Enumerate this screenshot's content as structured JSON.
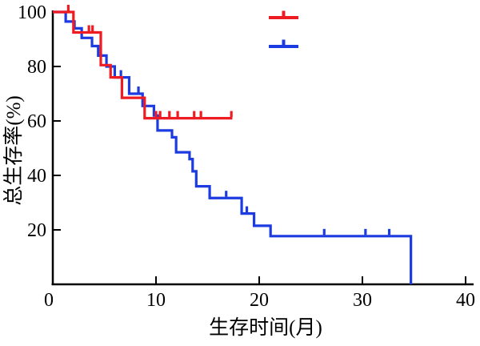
{
  "chart_data": {
    "type": "line",
    "subtype": "kaplan-meier-survival-step",
    "title": "",
    "xlabel": "生存时间(月)",
    "ylabel": "总生存率(%)",
    "xlim": [
      0,
      40
    ],
    "ylim": [
      0,
      100
    ],
    "x_ticks": [
      0,
      10,
      20,
      30,
      40
    ],
    "y_ticks": [
      20,
      40,
      60,
      80,
      100
    ],
    "grid": false,
    "axis_color": "#000000",
    "background": "#ffffff",
    "legend": {
      "position": "top-right-inside",
      "entries": [
        {
          "name": "red-group",
          "color": "#ee1b23",
          "label": ""
        },
        {
          "name": "blue-group",
          "color": "#1c3be0",
          "label": ""
        }
      ]
    },
    "series": [
      {
        "name": "red-group",
        "color": "#ee1b23",
        "steps": [
          [
            0,
            100
          ],
          [
            2.0,
            92.5
          ],
          [
            4.65,
            80.5
          ],
          [
            5.6,
            76
          ],
          [
            6.7,
            68.5
          ],
          [
            8.9,
            61
          ]
        ],
        "end_time": 17.4,
        "drops_to_zero": false,
        "censor_marks": [
          [
            1.5,
            100
          ],
          [
            3.5,
            92.5
          ],
          [
            3.85,
            92.5
          ],
          [
            10.0,
            61
          ],
          [
            10.4,
            61
          ],
          [
            11.3,
            61
          ],
          [
            12.1,
            61
          ],
          [
            13.7,
            61
          ],
          [
            14.35,
            61
          ],
          [
            17.3,
            61
          ]
        ]
      },
      {
        "name": "blue-group",
        "color": "#1c3be0",
        "steps": [
          [
            0,
            100
          ],
          [
            1.25,
            96.5
          ],
          [
            2.1,
            94
          ],
          [
            2.8,
            90.5
          ],
          [
            3.8,
            87.5
          ],
          [
            4.4,
            84
          ],
          [
            5.2,
            80
          ],
          [
            6.0,
            76
          ],
          [
            7.4,
            70
          ],
          [
            8.7,
            65.5
          ],
          [
            9.8,
            62
          ],
          [
            10.15,
            56.5
          ],
          [
            11.55,
            54
          ],
          [
            11.95,
            48.5
          ],
          [
            13.25,
            46
          ],
          [
            13.55,
            41.5
          ],
          [
            13.9,
            36
          ],
          [
            15.2,
            31.7
          ],
          [
            18.3,
            26
          ],
          [
            19.5,
            21.5
          ],
          [
            21.1,
            17.7
          ]
        ],
        "end_time": 34.7,
        "drops_to_zero": true,
        "censor_marks": [
          [
            6.6,
            76
          ],
          [
            8.3,
            70
          ],
          [
            16.8,
            31.7
          ],
          [
            18.8,
            26
          ],
          [
            26.3,
            17.7
          ],
          [
            30.3,
            17.7
          ],
          [
            32.6,
            17.7
          ]
        ]
      }
    ]
  }
}
